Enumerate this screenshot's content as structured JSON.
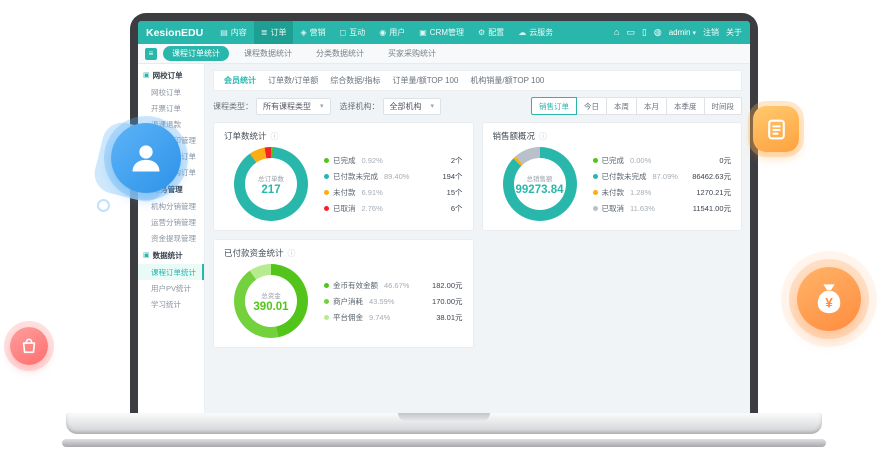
{
  "colors": {
    "accent": "#29b7ac",
    "blue": "#2d92e9",
    "orange": "#ff8c3e",
    "red": "#ff6e6e",
    "green": "#52c41a",
    "warn": "#faad14",
    "danger": "#f5222d",
    "gray_seg": "#b9c0c9"
  },
  "navbar": {
    "logo": "KesionEDU",
    "active_index": 1,
    "menu": [
      {
        "icon": "content-icon",
        "glyph": "▤",
        "label": "内容"
      },
      {
        "icon": "order-icon",
        "glyph": "≣",
        "label": "订单"
      },
      {
        "icon": "marketing-icon",
        "glyph": "◈",
        "label": "营销"
      },
      {
        "icon": "interaction-icon",
        "glyph": "◻",
        "label": "互动"
      },
      {
        "icon": "user-icon",
        "glyph": "◉",
        "label": "用户"
      },
      {
        "icon": "crm-icon",
        "glyph": "▣",
        "label": "CRM管理"
      },
      {
        "icon": "settings-icon",
        "glyph": "⚙",
        "label": "配置"
      },
      {
        "icon": "cloud-icon",
        "glyph": "☁",
        "label": "云服务"
      }
    ],
    "right_icons": [
      {
        "icon": "home-icon",
        "glyph": "⌂"
      },
      {
        "icon": "monitor-icon",
        "glyph": "▭"
      },
      {
        "icon": "mobile-icon",
        "glyph": "▯"
      },
      {
        "icon": "app-icon",
        "glyph": "◍"
      }
    ],
    "user": "admin",
    "user_caret": "▾",
    "links": [
      "注销",
      "关于"
    ]
  },
  "tabbar": {
    "active": 0,
    "tabs": [
      "课程订单统计",
      "课程数据统计",
      "分类数据统计",
      "买家采购统计"
    ],
    "collapse_glyph": "≡"
  },
  "sidebar": {
    "active": "课程订单统计",
    "sections": [
      {
        "header": "网校订单",
        "icon": "order-section-icon",
        "glyph": "▣",
        "items": [
          "网校订单",
          "开票订单",
          "退课退款",
          "线下打印管理",
          "课程知识订单",
          "积分换购订单"
        ]
      },
      {
        "header": "财务管理",
        "icon": "finance-section-icon",
        "glyph": "▣",
        "items": [
          "机构分销管理",
          "运营分销管理",
          "资金提现管理"
        ]
      },
      {
        "header": "数据统计",
        "icon": "stats-section-icon",
        "glyph": "▣",
        "items": [
          "课程订单统计",
          "用户PV统计",
          "学习统计"
        ]
      }
    ]
  },
  "content": {
    "active_tab": 0,
    "tabs": [
      "会员统计",
      "订单数/订单额",
      "综合数据/指标",
      "订单量/额TOP 100",
      "机构销量/额TOP 100"
    ],
    "filters": [
      {
        "label": "课程类型：",
        "value": "所有课程类型"
      },
      {
        "label": "选择机构：",
        "value": "全部机构"
      }
    ],
    "active_range": 0,
    "range_buttons": [
      "销售订单",
      "今日",
      "本周",
      "本月",
      "本季度",
      "时间段"
    ]
  },
  "chart_data": [
    {
      "type": "donut",
      "title": "订单数统计",
      "center_label": "总订单数",
      "center_value": "217",
      "center_color": "#29b7ac",
      "segments": [
        {
          "label": "已完成",
          "pct": "0.92%",
          "pct_num": 0.92,
          "value": "2个",
          "color": "#52c41a"
        },
        {
          "label": "已付款未完成",
          "pct": "89.40%",
          "pct_num": 89.4,
          "value": "194个",
          "color": "#29b7ac"
        },
        {
          "label": "未付款",
          "pct": "6.91%",
          "pct_num": 6.91,
          "value": "15个",
          "color": "#faad14"
        },
        {
          "label": "已取消",
          "pct": "2.76%",
          "pct_num": 2.76,
          "value": "6个",
          "color": "#f5222d"
        }
      ]
    },
    {
      "type": "donut",
      "title": "销售额概况",
      "center_label": "总销售额",
      "center_value": "99273.84",
      "center_color": "#29b7ac",
      "segments": [
        {
          "label": "已完成",
          "pct": "0.00%",
          "pct_num": 0.0,
          "value": "0元",
          "color": "#52c41a"
        },
        {
          "label": "已付款未完成",
          "pct": "87.09%",
          "pct_num": 87.09,
          "value": "86462.63元",
          "color": "#29b7ac"
        },
        {
          "label": "未付款",
          "pct": "1.28%",
          "pct_num": 1.28,
          "value": "1270.21元",
          "color": "#faad14"
        },
        {
          "label": "已取消",
          "pct": "11.63%",
          "pct_num": 11.63,
          "value": "11541.00元",
          "color": "#b9c0c9"
        }
      ]
    },
    {
      "type": "donut",
      "title": "已付款资金统计",
      "center_label": "总资金",
      "center_value": "390.01",
      "center_color": "#52c41a",
      "segments": [
        {
          "label": "金币有效金额",
          "pct": "46.67%",
          "pct_num": 46.67,
          "value": "182.00元",
          "color": "#52c41a"
        },
        {
          "label": "商户消耗",
          "pct": "43.59%",
          "pct_num": 43.59,
          "value": "170.00元",
          "color": "#73d13d"
        },
        {
          "label": "平台佣金",
          "pct": "9.74%",
          "pct_num": 9.74,
          "value": "38.01元",
          "color": "#b7eb8f"
        }
      ]
    }
  ]
}
